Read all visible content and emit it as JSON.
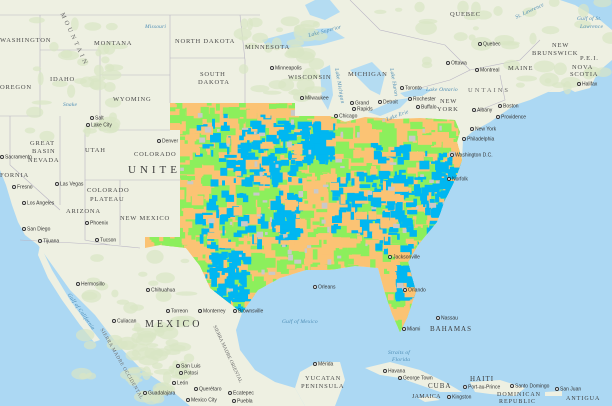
{
  "map": {
    "colors": {
      "ocean": "#acd8f3",
      "land": "#eef0e2",
      "land_forest": "#d9e6c4",
      "overlay_orange": "#fbc374",
      "overlay_blue": "#00b7f1",
      "overlay_green": "#8cef5c",
      "overlay_gray": "#c9c9c9"
    },
    "labels": {
      "washington": "WASHINGTON",
      "montana": "MONTANA",
      "north_dakota": "NORTH DAKOTA",
      "minnesota": "MINNESOTA",
      "quebec_prov": "QUEBEC",
      "idaho": "IDAHO",
      "oregon": "OREGON",
      "wyoming": "WYOMING",
      "south_dakota_1": "SOUTH",
      "south_dakota_2": "DAKOTA",
      "wisconsin": "WISCONSIN",
      "michigan": "MICHIGAN",
      "new_brunswick_1": "NEW",
      "new_brunswick_2": "BRUNSWICK",
      "maine": "MAINE",
      "pei": "P.E.I.",
      "nova_scotia_1": "NOVA",
      "nova_scotia_2": "SCOTIA",
      "gulf_st_lawrence_1": "Gulf of St.",
      "gulf_st_lawrence_2": "Lawrence",
      "st_lawrence": "St. Lawrence",
      "great_basin_1": "GREAT",
      "great_basin_2": "BASIN",
      "nevada": "NEVADA",
      "utah": "UTAH",
      "colorado": "COLORADO",
      "united": "UNITE",
      "colorado_plateau_1": "COLORADO",
      "colorado_plateau_2": "PLATEAU",
      "arizona": "ARIZONA",
      "new_mexico": "NEW MEXICO",
      "california": "FORNIA",
      "new_york_1": "NEW",
      "new_york_2": "YORK",
      "mexico": "MEXICO",
      "gulf_of_mexico": "Gulf of Mexico",
      "bahamas": "BAHAMAS",
      "cuba": "CUBA",
      "haiti": "HAITI",
      "dominican_1": "DOMINICAN",
      "dominican_2": "REPUBLIC",
      "jamaica": "JAMAICA",
      "antigua": "ANTIGUA",
      "yucatan_1": "YUCATAN",
      "yucatan_2": "PENINSULA",
      "straits_1": "Straits of",
      "straits_2": "Florida",
      "rocky_mountains": "MOUNTAIN",
      "appalachian": "UNTAINS",
      "sierra_madre_occ": "SIERRA MADRE OCCIDENTAL",
      "sierra_madre_or": "SIERRA MADRE ORIENTAL",
      "lake_superior": "Lake Superior",
      "lake_michigan": "Lake Michigan",
      "lake_huron": "Lake Huron",
      "lake_erie": "Lake Erie",
      "lake_ontario": "Lake Ontario",
      "missouri": "Missouri",
      "snake": "Snake",
      "gulf_california": "Gulf of California"
    },
    "cities": {
      "minneapolis": "Minneapolis",
      "milwaukee": "Milwaukee",
      "chicago": "Chicago",
      "grand_rapids_1": "Grand",
      "grand_rapids_2": "Rapids",
      "detroit": "Detroit",
      "toronto": "Toronto",
      "rochester": "Rochester",
      "buffalo": "Buffalo",
      "ottawa": "Ottawa",
      "montreal": "Montreal",
      "quebec": "Quebec",
      "halifax": "Halifax",
      "albany": "Albany",
      "boston": "Boston",
      "providence": "Providence",
      "new_york": "New York",
      "philadelphia": "Philadelphia",
      "washington_dc": "Washington D.C.",
      "norfolk": "Norfolk",
      "salt_lake_1": "Salt",
      "salt_lake_2": "Lake City",
      "denver": "Denver",
      "las_vegas": "Las Vegas",
      "los_angeles": "Los Angeles",
      "san_diego": "San Diego",
      "tijuana": "Tijuana",
      "phoenix": "Phoenix",
      "tucson": "Tucson",
      "sacramento": "Sacramento",
      "fresno": "Fresno",
      "jacksonville": "Jacksonville",
      "orlando": "Orlando",
      "miami": "Miami",
      "nassau": "Nassau",
      "havana": "Havana",
      "hermosillo": "Hermosillo",
      "chihuahua": "Chihuahua",
      "culiacan": "Culiacan",
      "torreon": "Torreon",
      "monterrey": "Monterrey",
      "brownsville": "Brownsville",
      "new_orleans": "Orleans",
      "san_luis_1": "San Luis",
      "san_luis_2": "Potosi",
      "leon": "León",
      "queretaro": "Querétaro",
      "guadalajara": "Guadalajara",
      "mexico_city": "Mexico City",
      "puebla": "Puebla",
      "ecatepec": "Ecatepec",
      "merida": "Mérida",
      "kingston": "Kingston",
      "port_au_prince": "Port-au-Prince",
      "santo_domingo": "Santo Domingo",
      "san_juan": "San Juan",
      "george_town": "George Town"
    }
  }
}
